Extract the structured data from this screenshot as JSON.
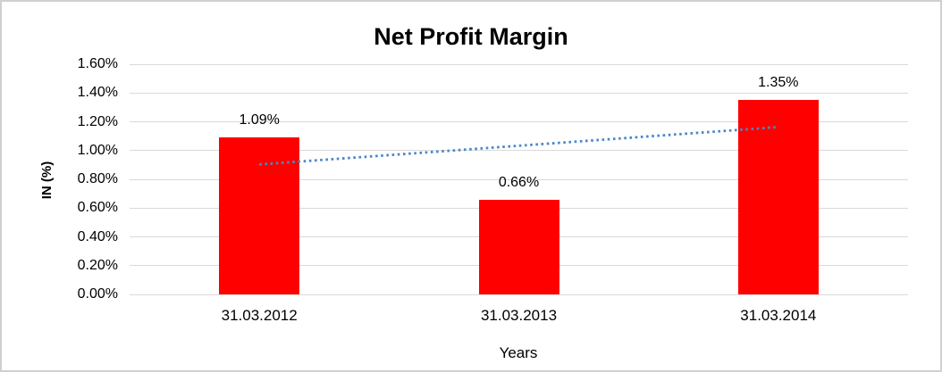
{
  "chart_data": {
    "type": "bar",
    "title": "Net Profit Margin",
    "xlabel": "Years",
    "ylabel": "IN (%)",
    "categories": [
      "31.03.2012",
      "31.03.2013",
      "31.03.2014"
    ],
    "values": [
      1.09,
      0.66,
      1.35
    ],
    "data_labels": [
      "1.09%",
      "0.66%",
      "1.35%"
    ],
    "ylim": [
      0,
      1.6
    ],
    "ytick_labels": [
      "0.00%",
      "0.20%",
      "0.40%",
      "0.60%",
      "0.80%",
      "1.00%",
      "1.20%",
      "1.40%",
      "1.60%"
    ],
    "grid": true,
    "legend": "none",
    "trendline": {
      "style": "dotted",
      "fit": "linear"
    },
    "colors": {
      "bar": "#ff0000",
      "trendline": "#4987c8",
      "gridline": "#d9d9d9",
      "frame_border": "#d0d0d0",
      "text": "#000000"
    }
  }
}
